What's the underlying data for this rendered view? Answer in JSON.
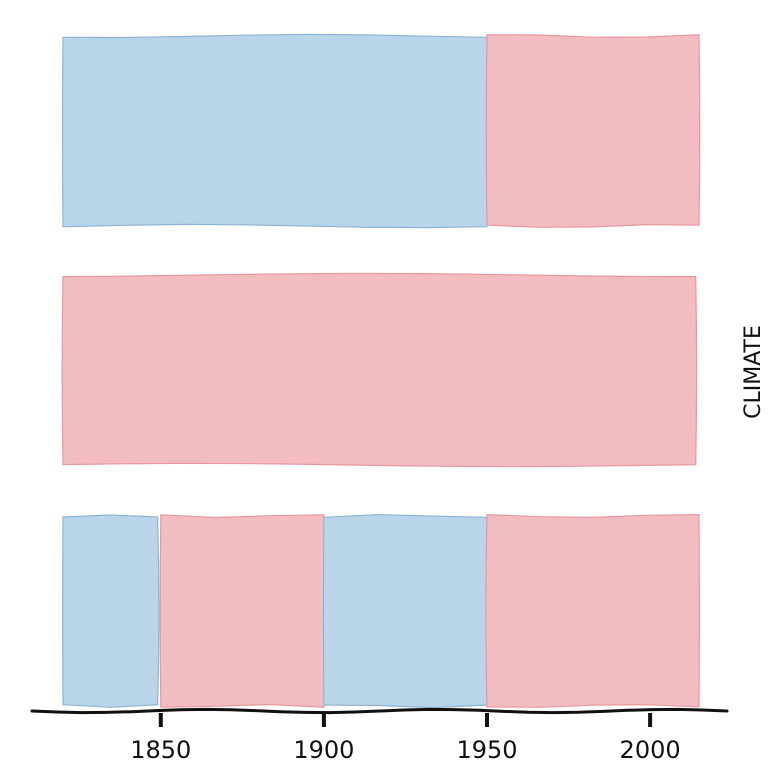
{
  "chart_data": {
    "type": "bar",
    "orientation": "horizontal-timeline",
    "ylabel": "CLIMATE",
    "x_ticks": [
      1850,
      1900,
      1950,
      2000
    ],
    "xlim": [
      1820,
      2015
    ],
    "grid": false,
    "colors": {
      "cool": "#b9d5e9",
      "warm": "#f2bcc0",
      "cool_edge": "#8fb4d3",
      "warm_edge": "#e6999f"
    },
    "rows": [
      {
        "segments": [
          {
            "start": 1820,
            "end": 1950,
            "kind": "cool"
          },
          {
            "start": 1950,
            "end": 2015,
            "kind": "warm"
          }
        ]
      },
      {
        "segments": [
          {
            "start": 1820,
            "end": 2014,
            "kind": "warm"
          }
        ]
      },
      {
        "segments": [
          {
            "start": 1820,
            "end": 1849,
            "kind": "cool"
          },
          {
            "start": 1850,
            "end": 1900,
            "kind": "warm"
          },
          {
            "start": 1900,
            "end": 1950,
            "kind": "cool"
          },
          {
            "start": 1950,
            "end": 2015,
            "kind": "warm"
          }
        ]
      }
    ]
  }
}
